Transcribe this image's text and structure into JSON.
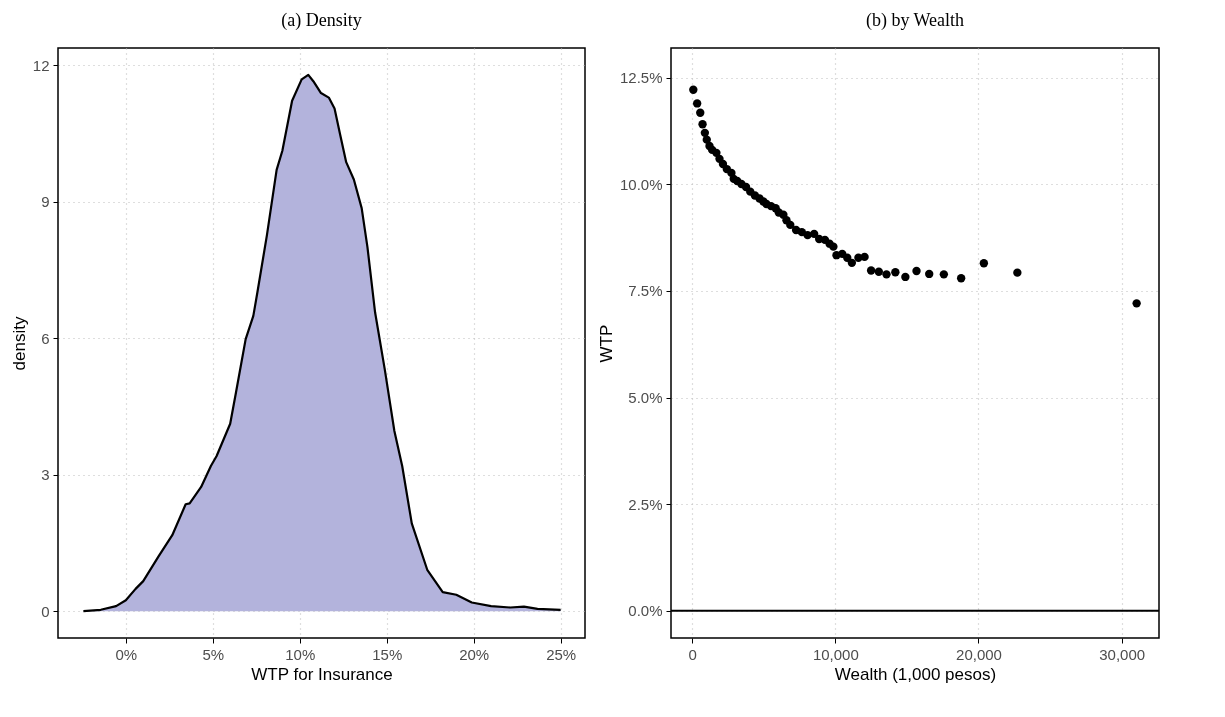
{
  "chart_data": [
    {
      "type": "area",
      "title": "(a) Density",
      "xlabel": "WTP for Insurance",
      "ylabel": "density",
      "grid": true,
      "xlim": [
        -3.9,
        26.4
      ],
      "ylim": [
        -0.59,
        12.38
      ],
      "xticks": [
        {
          "value": 0,
          "label": "0%"
        },
        {
          "value": 5,
          "label": "5%"
        },
        {
          "value": 10,
          "label": "10%"
        },
        {
          "value": 15,
          "label": "15%"
        },
        {
          "value": 20,
          "label": "20%"
        },
        {
          "value": 25,
          "label": "25%"
        }
      ],
      "yticks": [
        0,
        3,
        6,
        9,
        12
      ],
      "series": [
        {
          "color": "#b3b3dc",
          "x": [
            -2.44,
            -1.44,
            -0.56,
            0,
            0.56,
            1.0,
            1.89,
            2.67,
            3.44,
            3.67,
            4.33,
            4.89,
            5.22,
            6.0,
            6.33,
            6.89,
            7.33,
            7.56,
            8.11,
            8.67,
            9.0,
            9.56,
            10.11,
            10.49,
            10.78,
            11.22,
            11.67,
            12.0,
            12.33,
            12.67,
            13.11,
            13.56,
            13.89,
            14.33,
            14.89,
            15.44,
            15.89,
            16.44,
            17.33,
            18.22,
            19.0,
            19.89,
            21.0,
            22.11,
            22.89,
            23.67,
            25.0
          ],
          "values": [
            0,
            0.03,
            0.11,
            0.24,
            0.49,
            0.66,
            1.21,
            1.67,
            2.35,
            2.37,
            2.73,
            3.19,
            3.41,
            4.12,
            4.8,
            5.98,
            6.49,
            7.0,
            8.26,
            9.7,
            10.12,
            11.22,
            11.69,
            11.79,
            11.65,
            11.39,
            11.29,
            11.05,
            10.46,
            9.87,
            9.49,
            8.86,
            8.01,
            6.57,
            5.31,
            3.96,
            3.19,
            1.93,
            0.91,
            0.42,
            0.36,
            0.19,
            0.11,
            0.08,
            0.1,
            0.05,
            0.03
          ]
        }
      ]
    },
    {
      "type": "scatter",
      "title": "(b) by Wealth",
      "xlabel": "Wealth (1,000 pesos)",
      "ylabel": "WTP",
      "grid": true,
      "marker": "circle",
      "xlim": [
        -1478,
        32608
      ],
      "ylim": [
        -0.64,
        13.2
      ],
      "xticks": [
        0,
        {
          "value": 10000,
          "label": "10,000"
        },
        {
          "value": 20000,
          "label": "20,000"
        },
        {
          "value": 30000,
          "label": "30,000"
        }
      ],
      "yticks": [
        {
          "value": 0,
          "label": "0.0%"
        },
        {
          "value": 2.5,
          "label": "2.5%"
        },
        {
          "value": 5,
          "label": "5.0%"
        },
        {
          "value": 7.5,
          "label": "7.5%"
        },
        {
          "value": 10,
          "label": "10.0%"
        },
        {
          "value": 12.5,
          "label": "12.5%"
        }
      ],
      "ref_lines": [
        {
          "axis": "y",
          "value": 0,
          "color": "#000000"
        }
      ],
      "series": [
        {
          "color": "#000000",
          "x": [
            81,
            349,
            565,
            726,
            887,
            1021,
            1210,
            1398,
            1694,
            1909,
            2150,
            2419,
            2742,
            2903,
            3145,
            3441,
            3763,
            4059,
            4382,
            4704,
            4973,
            5188,
            5510,
            5833,
            6048,
            6371,
            6586,
            6854,
            7258,
            7661,
            8064,
            8521,
            8870,
            9274,
            9596,
            9865,
            10080,
            10483,
            10833,
            11155,
            11612,
            12042,
            12499,
            13037,
            13574,
            14193,
            14892,
            15671,
            16558,
            17580,
            18789,
            20375,
            22714,
            31046
          ],
          "values": [
            12.22,
            11.9,
            11.68,
            11.41,
            11.21,
            11.05,
            10.9,
            10.81,
            10.74,
            10.6,
            10.48,
            10.36,
            10.27,
            10.13,
            10.08,
            10.01,
            9.94,
            9.83,
            9.74,
            9.67,
            9.6,
            9.54,
            9.49,
            9.44,
            9.34,
            9.29,
            9.16,
            9.05,
            8.93,
            8.88,
            8.81,
            8.84,
            8.72,
            8.7,
            8.61,
            8.54,
            8.34,
            8.37,
            8.28,
            8.16,
            8.28,
            8.3,
            7.98,
            7.95,
            7.89,
            7.94,
            7.83,
            7.97,
            7.9,
            7.89,
            7.8,
            8.15,
            7.93,
            7.21
          ]
        }
      ]
    }
  ]
}
